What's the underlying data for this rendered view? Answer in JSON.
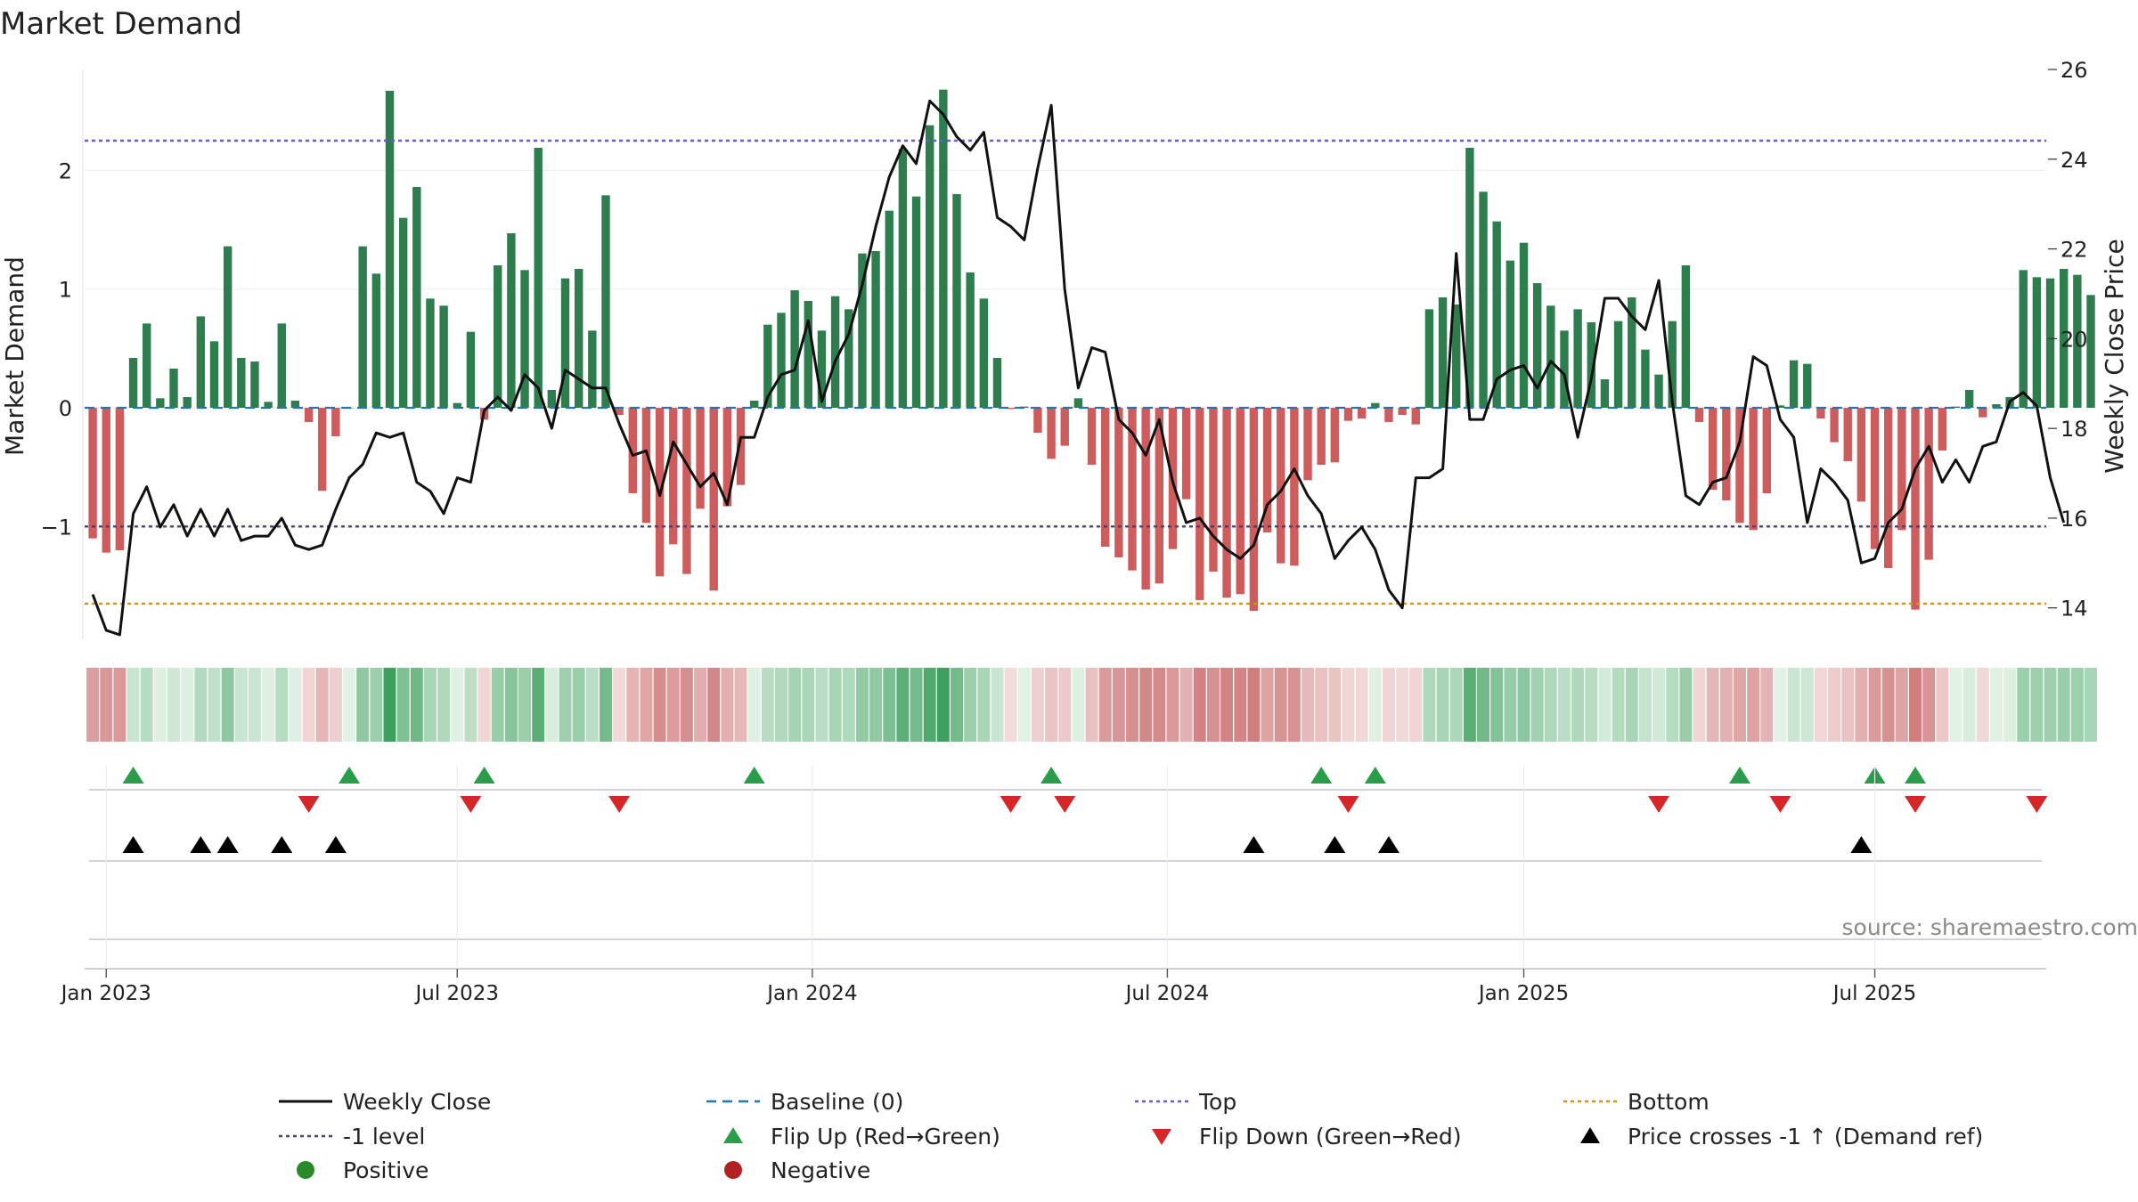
{
  "chart_data": {
    "type": "bar+line",
    "title": "Market Demand",
    "ylabel_left": "Market Demand",
    "ylabel_right": "Weekly Close Price",
    "ylim_left": [
      -1.95,
      2.85
    ],
    "ylim_right": [
      13.3,
      26.0
    ],
    "yticks_left": [
      -1,
      0,
      1,
      2
    ],
    "ytick_labels_left": [
      "−1",
      "0",
      "1",
      "2"
    ],
    "yticks_right": [
      14,
      16,
      18,
      20,
      22,
      24,
      26
    ],
    "ytick_labels_right": [
      "14",
      "16",
      "18",
      "20",
      "22",
      "24",
      "26"
    ],
    "x_start": "2022-12-26",
    "x_interval_weeks": 1,
    "x_range_weeks": [
      -0.6,
      144.7
    ],
    "xtick_positions_weeks": [
      1,
      27,
      53.3,
      79.6,
      106,
      132
    ],
    "xtick_labels": [
      "Jan 2023",
      "Jul 2023",
      "Jan 2024",
      "Jul 2024",
      "Jan 2025",
      "Jul 2025"
    ],
    "reference_lines": {
      "top": 2.25,
      "minus_one": -1.0,
      "bottom": -1.65,
      "baseline": 0
    },
    "demand": [
      -1.1,
      -1.22,
      -1.2,
      0.42,
      0.71,
      0.08,
      0.33,
      0.09,
      0.77,
      0.56,
      1.36,
      0.42,
      0.39,
      0.05,
      0.71,
      0.06,
      -0.12,
      -0.7,
      -0.24,
      0,
      1.36,
      1.13,
      2.67,
      1.6,
      1.86,
      0.92,
      0.86,
      0.04,
      0.64,
      -0.1,
      1.2,
      1.47,
      1.16,
      2.19,
      0.15,
      1.09,
      1.17,
      0.65,
      1.79,
      -0.06,
      -0.72,
      -0.97,
      -1.42,
      -1.15,
      -1.4,
      -0.85,
      -1.54,
      -0.83,
      -0.65,
      0.06,
      0.7,
      0.8,
      0.99,
      0.9,
      0.65,
      0.94,
      0.83,
      1.3,
      1.32,
      1.66,
      2.18,
      1.78,
      2.38,
      2.68,
      1.8,
      1.14,
      0.92,
      0.42,
      -0.01,
      0.01,
      -0.21,
      -0.43,
      -0.32,
      0.08,
      -0.48,
      -1.17,
      -1.26,
      -1.37,
      -1.53,
      -1.48,
      -1.19,
      -0.77,
      -1.62,
      -1.38,
      -1.6,
      -1.57,
      -1.71,
      -1.05,
      -1.31,
      -1.33,
      -0.61,
      -0.48,
      -0.46,
      -0.11,
      -0.09,
      0.04,
      -0.12,
      -0.06,
      -0.14,
      0.83,
      0.93,
      0.87,
      2.19,
      1.82,
      1.57,
      1.24,
      1.39,
      1.05,
      0.86,
      0.65,
      0.83,
      0.72,
      0.24,
      0.73,
      0.93,
      0.49,
      0.28,
      0.73,
      1.2,
      -0.12,
      -0.69,
      -0.78,
      -0.97,
      -1.03,
      -0.72,
      0.02,
      0.4,
      0.37,
      -0.09,
      -0.29,
      -0.45,
      -0.79,
      -1.19,
      -1.35,
      -1.03,
      -1.7,
      -1.28,
      -0.36,
      0.01,
      0.15,
      -0.08,
      0.03,
      0.09,
      1.16,
      1.1,
      1.09,
      1.17,
      1.12,
      0.95
    ],
    "close": [
      14.3,
      13.5,
      13.4,
      16.1,
      16.7,
      15.8,
      16.3,
      15.6,
      16.2,
      15.6,
      16.2,
      15.5,
      15.6,
      15.6,
      16.0,
      15.4,
      15.3,
      15.4,
      16.2,
      16.9,
      17.2,
      17.9,
      17.8,
      17.9,
      16.8,
      16.6,
      16.1,
      16.9,
      16.8,
      18.4,
      18.7,
      18.4,
      19.2,
      18.9,
      18.0,
      19.3,
      19.1,
      18.9,
      18.9,
      18.1,
      17.4,
      17.5,
      16.5,
      17.7,
      17.2,
      16.7,
      17.0,
      16.3,
      17.8,
      17.8,
      18.7,
      19.2,
      19.3,
      20.4,
      18.6,
      19.5,
      20.1,
      21.2,
      22.5,
      23.6,
      24.3,
      23.9,
      25.3,
      25.0,
      24.5,
      24.2,
      24.6,
      22.7,
      22.5,
      22.2,
      23.8,
      25.2,
      21.1,
      18.9,
      19.8,
      19.7,
      18.2,
      17.9,
      17.4,
      18.2,
      16.8,
      15.9,
      16.0,
      15.6,
      15.3,
      15.1,
      15.4,
      16.3,
      16.6,
      17.1,
      16.5,
      16.1,
      15.1,
      15.5,
      15.8,
      15.3,
      14.4,
      14.0,
      16.9,
      16.9,
      17.1,
      21.9,
      18.2,
      18.2,
      19.1,
      19.3,
      19.4,
      18.9,
      19.5,
      19.2,
      17.8,
      19.1,
      20.9,
      20.9,
      20.5,
      20.2,
      21.3,
      18.6,
      16.5,
      16.3,
      16.8,
      16.9,
      17.7,
      19.6,
      19.4,
      18.2,
      17.8,
      15.9,
      17.1,
      16.8,
      16.4,
      15.0,
      15.1,
      15.9,
      16.2,
      17.1,
      17.6,
      16.8,
      17.3,
      16.8,
      17.6,
      17.7,
      18.6,
      18.8,
      18.5,
      16.9,
      15.9
    ],
    "flip_up_weeks": [
      3,
      19,
      29,
      49,
      71,
      91,
      95,
      122,
      132,
      135
    ],
    "flip_down_weeks": [
      16,
      28,
      39,
      68,
      72,
      93,
      116,
      125,
      135,
      144
    ],
    "price_cross_weeks": [
      3,
      8,
      10,
      14,
      18,
      86,
      92,
      96,
      131
    ],
    "legend": [
      "Weekly Close",
      "Baseline (0)",
      "Top",
      "Bottom",
      "-1 level",
      "Flip Up (Red→Green)",
      "Flip Down (Green→Red)",
      "Price crosses -1 ↑ (Demand ref)",
      "Positive",
      "Negative"
    ],
    "legend_placement": "bottom"
  },
  "source_text": "source: sharemaestro.com",
  "colors": {
    "positive_bar": "#2e7d4f",
    "negative_bar": "#cd5c5c",
    "close_line": "#111111",
    "baseline": "#1f77b4",
    "top": "#6a5acd",
    "minus_one": "#444466",
    "bottom": "#d4921c",
    "flip_up": "#2a9d4a",
    "flip_down": "#d62728",
    "price_cross": "#000000",
    "positive_dot": "#2a8a2a",
    "negative_dot": "#b22222"
  }
}
